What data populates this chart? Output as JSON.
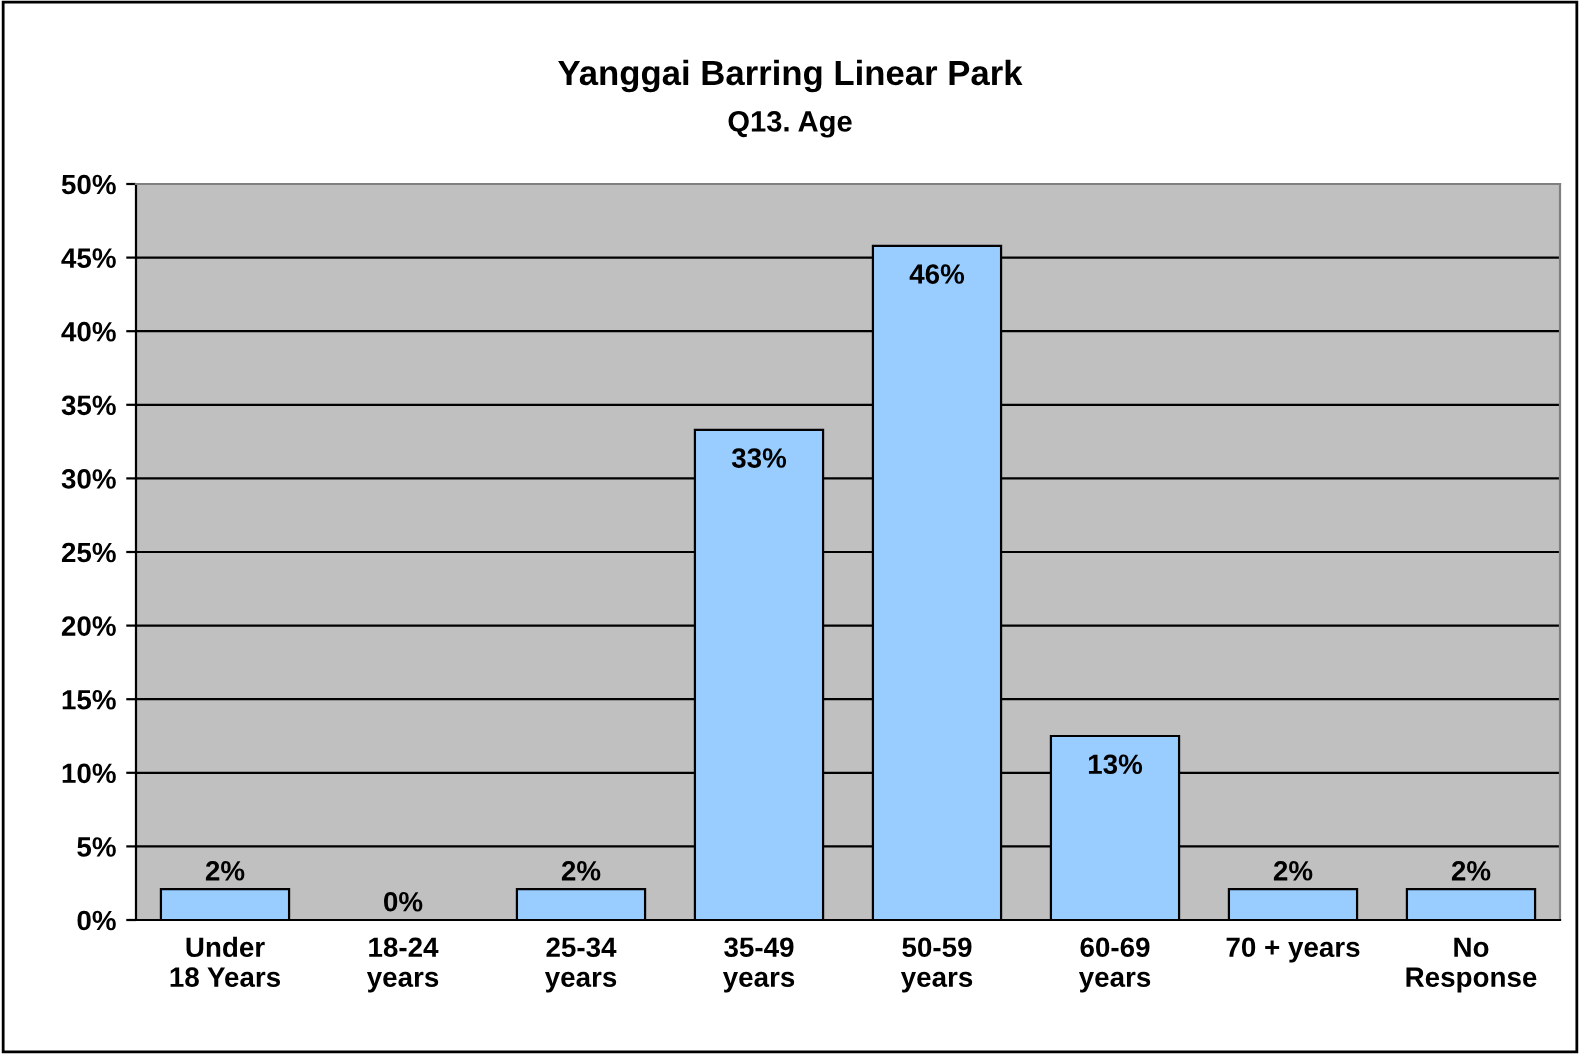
{
  "chart_data": {
    "type": "bar",
    "title": "Yanggai Barring Linear Park",
    "subtitle": "Q13. Age",
    "categories": [
      "Under\n18 Years",
      "18-24\nyears",
      "25-34\nyears",
      "35-49\nyears",
      "50-59\nyears",
      "60-69\nyears",
      "70 + years",
      "No\nResponse"
    ],
    "values": [
      2.1,
      0,
      2.1,
      33.3,
      45.8,
      12.5,
      2.1,
      2.1
    ],
    "value_labels": [
      "2%",
      "0%",
      "2%",
      "33%",
      "46%",
      "13%",
      "2%",
      "2%"
    ],
    "color": "#99ccff",
    "ylim": [
      0,
      50
    ],
    "yticks": [
      {
        "value": 0,
        "label": "0%"
      },
      {
        "value": 5,
        "label": "5%"
      },
      {
        "value": 10,
        "label": "10%"
      },
      {
        "value": 15,
        "label": "15%"
      },
      {
        "value": 20,
        "label": "20%"
      },
      {
        "value": 25,
        "label": "25%"
      },
      {
        "value": 30,
        "label": "30%"
      },
      {
        "value": 35,
        "label": "35%"
      },
      {
        "value": 40,
        "label": "40%"
      },
      {
        "value": 45,
        "label": "45%"
      },
      {
        "value": 50,
        "label": "50%"
      }
    ],
    "grid": "y",
    "legend": false
  }
}
